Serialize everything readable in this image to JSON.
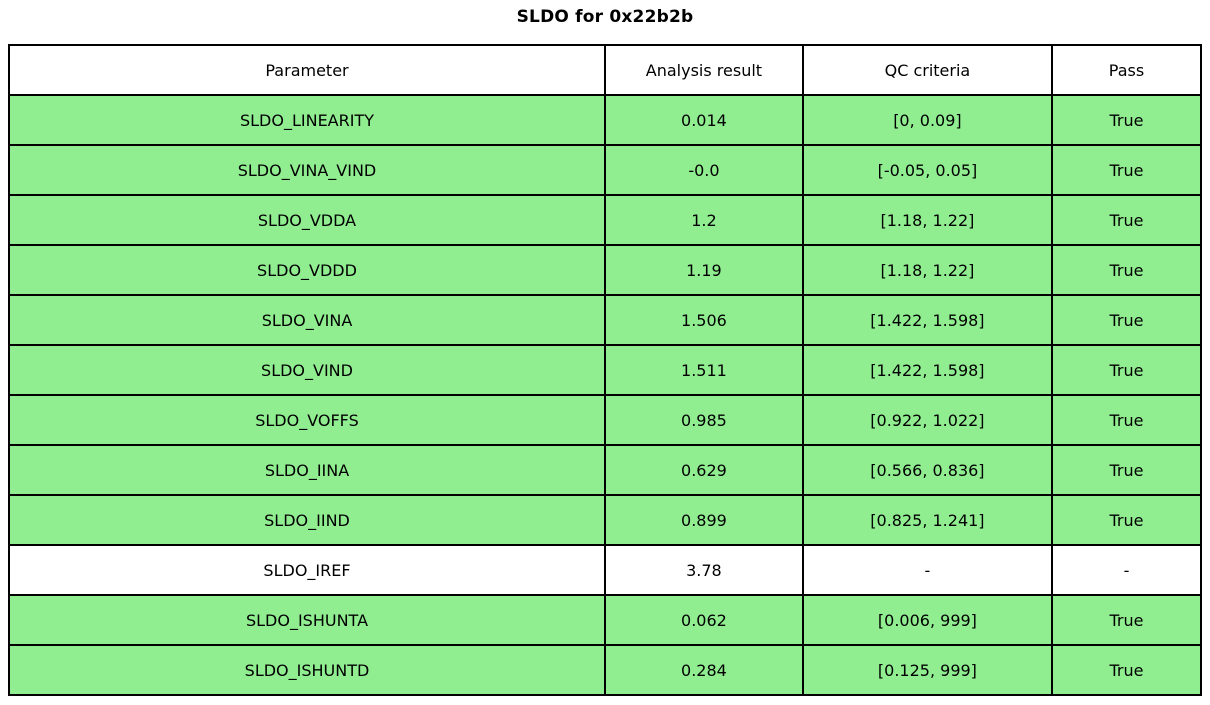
{
  "title": "SLDO for 0x22b2b",
  "colors": {
    "row_pass_green": "#90EE90",
    "row_neutral_white": "#ffffff",
    "border_black": "#000000"
  },
  "chart_data": {
    "type": "table",
    "title": "SLDO for 0x22b2b",
    "columns": [
      "Parameter",
      "Analysis result",
      "QC criteria",
      "Pass"
    ],
    "rows": [
      {
        "parameter": "SLDO_LINEARITY",
        "result": "0.014",
        "criteria": "[0, 0.09]",
        "pass": "True",
        "highlight": true
      },
      {
        "parameter": "SLDO_VINA_VIND",
        "result": "-0.0",
        "criteria": "[-0.05, 0.05]",
        "pass": "True",
        "highlight": true
      },
      {
        "parameter": "SLDO_VDDA",
        "result": "1.2",
        "criteria": "[1.18, 1.22]",
        "pass": "True",
        "highlight": true
      },
      {
        "parameter": "SLDO_VDDD",
        "result": "1.19",
        "criteria": "[1.18, 1.22]",
        "pass": "True",
        "highlight": true
      },
      {
        "parameter": "SLDO_VINA",
        "result": "1.506",
        "criteria": "[1.422, 1.598]",
        "pass": "True",
        "highlight": true
      },
      {
        "parameter": "SLDO_VIND",
        "result": "1.511",
        "criteria": "[1.422, 1.598]",
        "pass": "True",
        "highlight": true
      },
      {
        "parameter": "SLDO_VOFFS",
        "result": "0.985",
        "criteria": "[0.922, 1.022]",
        "pass": "True",
        "highlight": true
      },
      {
        "parameter": "SLDO_IINA",
        "result": "0.629",
        "criteria": "[0.566, 0.836]",
        "pass": "True",
        "highlight": true
      },
      {
        "parameter": "SLDO_IIND",
        "result": "0.899",
        "criteria": "[0.825, 1.241]",
        "pass": "True",
        "highlight": true
      },
      {
        "parameter": "SLDO_IREF",
        "result": "3.78",
        "criteria": "-",
        "pass": "-",
        "highlight": false
      },
      {
        "parameter": "SLDO_ISHUNTA",
        "result": "0.062",
        "criteria": "[0.006, 999]",
        "pass": "True",
        "highlight": true
      },
      {
        "parameter": "SLDO_ISHUNTD",
        "result": "0.284",
        "criteria": "[0.125, 999]",
        "pass": "True",
        "highlight": true
      }
    ]
  }
}
